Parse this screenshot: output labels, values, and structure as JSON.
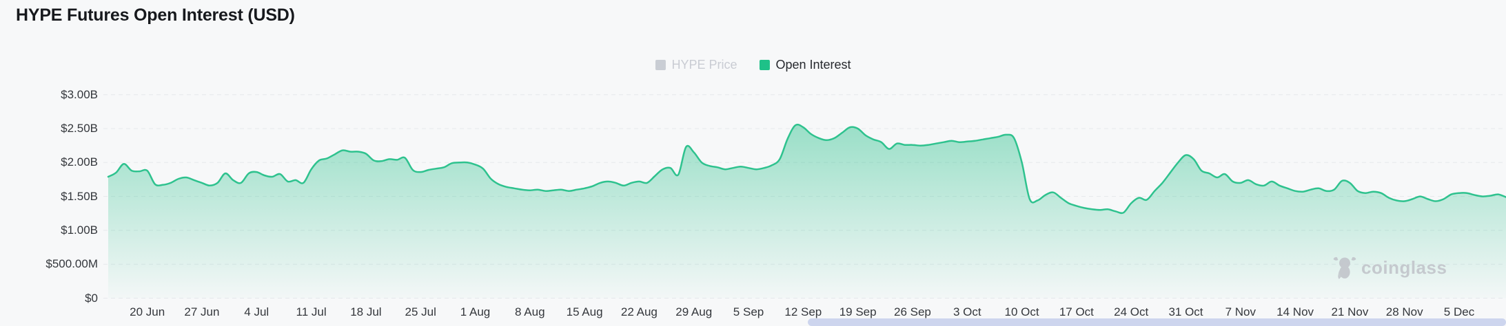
{
  "header": {
    "title": "HYPE Futures Open Interest (USD)"
  },
  "legend": {
    "items": [
      {
        "label": "HYPE Price",
        "swatch_color": "#c9cdd4",
        "text_color": "#c9ccd3",
        "active": false
      },
      {
        "label": "Open Interest",
        "swatch_color": "#1ec188",
        "text_color": "#27292e",
        "active": true
      }
    ]
  },
  "watermark": {
    "text": "coinglass",
    "color": "#c2c5cb"
  },
  "scrollbar": {
    "thumb_color": "#cdd5ee"
  },
  "chart_data": {
    "type": "area",
    "title": "HYPE Futures Open Interest (USD)",
    "series_name": "Open Interest",
    "unit": "USD billions",
    "legend_position": "top-center",
    "grid": "dashed-horizontal",
    "line_color": "#2ec28e",
    "fill_gradient_top": "rgba(46,194,142,0.50)",
    "fill_gradient_bottom": "rgba(46,194,142,0.02)",
    "grid_color": "#e5e7eb",
    "y_axis": {
      "tick_labels": [
        "$3.00B",
        "$2.50B",
        "$2.00B",
        "$1.50B",
        "$1.00B",
        "$500.00M",
        "$0"
      ],
      "tick_values_busd": [
        3.0,
        2.5,
        2.0,
        1.5,
        1.0,
        0.5,
        0
      ],
      "range_busd": [
        0,
        3.0
      ]
    },
    "x_axis": {
      "tick_labels": [
        "20 Jun",
        "27 Jun",
        "4 Jul",
        "11 Jul",
        "18 Jul",
        "25 Jul",
        "1 Aug",
        "8 Aug",
        "15 Aug",
        "22 Aug",
        "29 Aug",
        "5 Sep",
        "12 Sep",
        "19 Sep",
        "26 Sep",
        "3 Oct",
        "10 Oct",
        "17 Oct",
        "24 Oct",
        "31 Oct",
        "7 Nov",
        "14 Nov",
        "21 Nov",
        "28 Nov",
        "5 Dec"
      ],
      "tick_day_offsets": [
        5,
        12,
        19,
        26,
        33,
        40,
        47,
        54,
        61,
        68,
        75,
        82,
        89,
        96,
        103,
        110,
        117,
        124,
        131,
        138,
        145,
        152,
        159,
        166,
        173
      ],
      "start_date": "15 Jun",
      "end_date": "11 Dec",
      "interval": "daily"
    },
    "values_busd": [
      1.79,
      1.85,
      1.98,
      1.88,
      1.87,
      1.88,
      1.68,
      1.67,
      1.7,
      1.76,
      1.78,
      1.74,
      1.7,
      1.66,
      1.7,
      1.84,
      1.74,
      1.7,
      1.84,
      1.86,
      1.81,
      1.79,
      1.83,
      1.72,
      1.74,
      1.7,
      1.9,
      2.03,
      2.06,
      2.12,
      2.18,
      2.16,
      2.16,
      2.13,
      2.03,
      2.02,
      2.05,
      2.04,
      2.07,
      1.89,
      1.86,
      1.89,
      1.91,
      1.93,
      1.99,
      2.0,
      2.0,
      1.97,
      1.91,
      1.76,
      1.68,
      1.64,
      1.62,
      1.6,
      1.59,
      1.6,
      1.58,
      1.59,
      1.6,
      1.58,
      1.6,
      1.62,
      1.65,
      1.7,
      1.72,
      1.7,
      1.66,
      1.7,
      1.72,
      1.7,
      1.8,
      1.9,
      1.92,
      1.82,
      2.23,
      2.15,
      2.0,
      1.95,
      1.93,
      1.9,
      1.92,
      1.94,
      1.92,
      1.9,
      1.92,
      1.96,
      2.05,
      2.35,
      2.55,
      2.52,
      2.42,
      2.36,
      2.33,
      2.36,
      2.44,
      2.52,
      2.5,
      2.4,
      2.34,
      2.3,
      2.2,
      2.28,
      2.26,
      2.26,
      2.25,
      2.26,
      2.28,
      2.3,
      2.32,
      2.3,
      2.31,
      2.32,
      2.34,
      2.36,
      2.38,
      2.41,
      2.36,
      2.0,
      1.46,
      1.44,
      1.52,
      1.56,
      1.48,
      1.4,
      1.36,
      1.33,
      1.31,
      1.3,
      1.31,
      1.28,
      1.26,
      1.4,
      1.48,
      1.45,
      1.58,
      1.7,
      1.85,
      2.0,
      2.11,
      2.05,
      1.88,
      1.84,
      1.78,
      1.83,
      1.72,
      1.7,
      1.74,
      1.68,
      1.66,
      1.72,
      1.66,
      1.62,
      1.58,
      1.57,
      1.6,
      1.62,
      1.58,
      1.6,
      1.73,
      1.7,
      1.58,
      1.55,
      1.57,
      1.55,
      1.48,
      1.44,
      1.43,
      1.46,
      1.5,
      1.46,
      1.43,
      1.46,
      1.53,
      1.55,
      1.55,
      1.52,
      1.5,
      1.51,
      1.53,
      1.49
    ]
  }
}
